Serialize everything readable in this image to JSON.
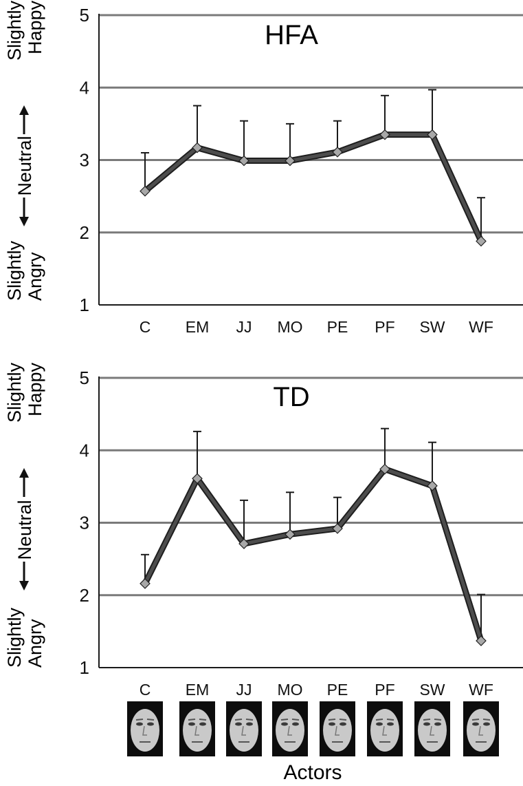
{
  "figure": {
    "xlabel": "Actors",
    "face_icon": "face-photo-icon",
    "colors": {
      "line": "#4d4d4d",
      "marker_fill": "#a8a8a8",
      "grid": "#7a7a7a",
      "axis": "#1a1a1a",
      "text": "#111111"
    }
  },
  "chart_data": [
    {
      "type": "line",
      "title": "HFA",
      "categories": [
        "C",
        "EM",
        "JJ",
        "MO",
        "PE",
        "PF",
        "SW",
        "WF"
      ],
      "series": [
        {
          "values": [
            2.57,
            3.17,
            2.99,
            2.99,
            3.11,
            3.35,
            3.35,
            1.88
          ],
          "error_upper": [
            3.1,
            3.75,
            3.54,
            3.5,
            3.54,
            3.89,
            3.97,
            2.48
          ]
        }
      ],
      "ylim": [
        1,
        5
      ],
      "yticks": [
        1,
        2,
        3,
        4,
        5
      ],
      "grid": true,
      "ylabel_left": [
        "Slightly",
        "Angry"
      ],
      "ylabel_mid": "Neutral",
      "ylabel_right": [
        "Slightly",
        "Happy"
      ]
    },
    {
      "type": "line",
      "title": "TD",
      "categories": [
        "C",
        "EM",
        "JJ",
        "MO",
        "PE",
        "PF",
        "SW",
        "WF"
      ],
      "series": [
        {
          "values": [
            2.16,
            3.61,
            2.71,
            2.84,
            2.92,
            3.74,
            3.51,
            1.37
          ],
          "error_upper": [
            2.56,
            4.26,
            3.31,
            3.42,
            3.35,
            4.3,
            4.11,
            2.01
          ]
        }
      ],
      "ylim": [
        1,
        5
      ],
      "yticks": [
        1,
        2,
        3,
        4,
        5
      ],
      "grid": true,
      "ylabel_left": [
        "Slightly",
        "Angry"
      ],
      "ylabel_mid": "Neutral",
      "ylabel_right": [
        "Slightly",
        "Happy"
      ]
    }
  ]
}
